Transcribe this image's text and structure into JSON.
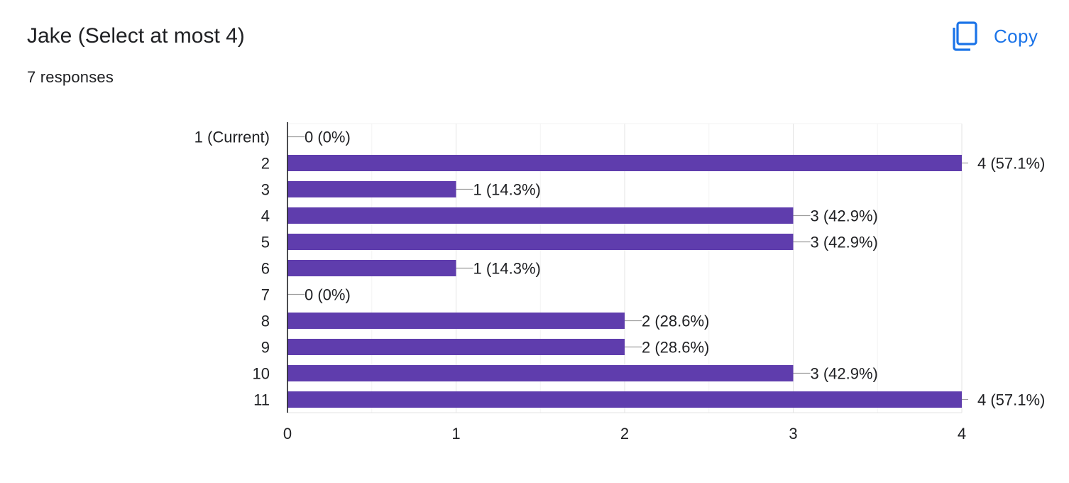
{
  "header": {
    "title": "Jake (Select at most 4)",
    "responses": "7 responses",
    "copy_label": "Copy",
    "copy_icon": "copy-icon"
  },
  "colors": {
    "bar": "#5f3dad",
    "accent": "#1a73e8",
    "grid": "#ececec",
    "axis": "#202124",
    "leader": "#9e9e9e"
  },
  "chart_data": {
    "type": "bar",
    "orientation": "horizontal",
    "categories": [
      "1 (Current)",
      "2",
      "3",
      "4",
      "5",
      "6",
      "7",
      "8",
      "9",
      "10",
      "11"
    ],
    "values": [
      0,
      4,
      1,
      3,
      3,
      1,
      0,
      2,
      2,
      3,
      4
    ],
    "value_labels": [
      "0 (0%)",
      "4 (57.1%)",
      "1 (14.3%)",
      "3 (42.9%)",
      "3 (42.9%)",
      "1 (14.3%)",
      "0 (0%)",
      "2 (28.6%)",
      "2 (28.6%)",
      "3 (42.9%)",
      "4 (57.1%)"
    ],
    "xlim": [
      0,
      4
    ],
    "xticks": [
      0,
      1,
      2,
      3,
      4
    ],
    "grid": true,
    "title": "",
    "xlabel": "",
    "ylabel": ""
  }
}
